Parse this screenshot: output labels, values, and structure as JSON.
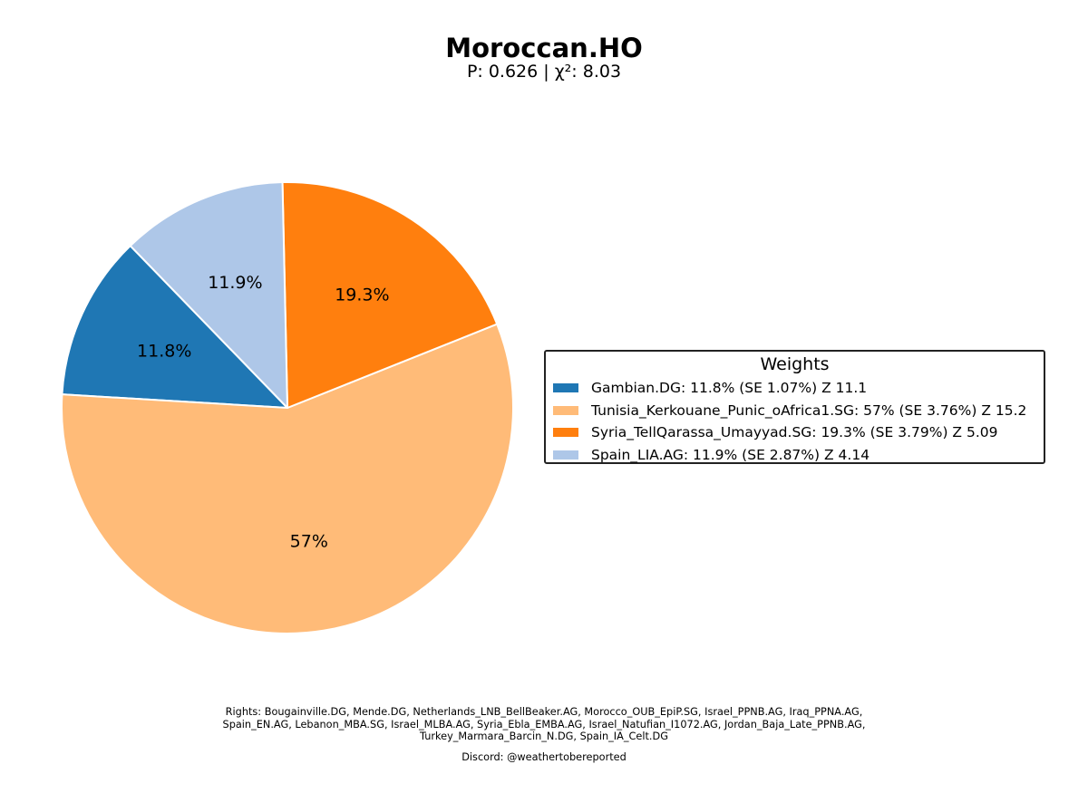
{
  "chart_data": {
    "type": "pie",
    "title": "Moroccan.HO",
    "subtitle": "P: 0.626 | χ²: 8.03",
    "slices": [
      {
        "label": "11.8%",
        "value": 11.8,
        "color": "#1f77b4"
      },
      {
        "label": "57%",
        "value": 57.0,
        "color": "#ffbb78"
      },
      {
        "label": "19.3%",
        "value": 19.3,
        "color": "#ff7f0e"
      },
      {
        "label": "11.9%",
        "value": 11.9,
        "color": "#aec7e8"
      }
    ],
    "legend": {
      "title": "Weights",
      "placement": "right",
      "entries": [
        "Gambian.DG: 11.8% (SE 1.07%) Z 11.1",
        "Tunisia_Kerkouane_Punic_oAfrica1.SG: 57% (SE 3.76%) Z 15.2",
        "Syria_TellQarassa_Umayyad.SG: 19.3% (SE 3.79%) Z 5.09",
        "Spain_LIA.AG: 11.9% (SE 2.87%) Z 4.14"
      ]
    }
  },
  "footer": {
    "rights_lines": [
      "Rights: Bougainville.DG, Mende.DG, Netherlands_LNB_BellBeaker.AG, Morocco_OUB_EpiP.SG, Israel_PPNB.AG, Iraq_PPNA.AG,",
      "Spain_EN.AG, Lebanon_MBA.SG, Israel_MLBA.AG, Syria_Ebla_EMBA.AG, Israel_Natufian_I1072.AG, Jordan_Baja_Late_PPNB.AG,",
      "Turkey_Marmara_Barcin_N.DG, Spain_IA_Celt.DG"
    ],
    "discord": "Discord: @weathertobereported"
  }
}
